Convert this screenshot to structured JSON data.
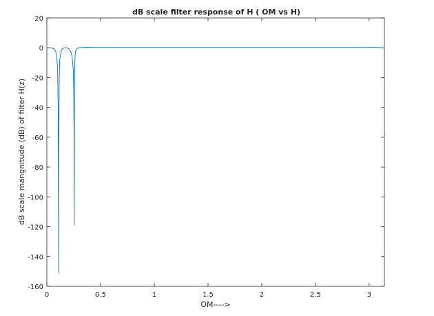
{
  "chart_data": {
    "type": "line",
    "title": "dB scale filter response of H ( OM vs H)",
    "xlabel": "OM---->",
    "ylabel": "dB scale mangnitude (dB) of filter H(z)",
    "xlim": [
      0,
      3.1416
    ],
    "ylim": [
      -160,
      20
    ],
    "xticks": [
      0,
      0.5,
      1,
      1.5,
      2,
      2.5,
      3
    ],
    "xtick_labels": [
      "0",
      "0.5",
      "1",
      "1.5",
      "2",
      "2.5",
      "3"
    ],
    "yticks": [
      20,
      0,
      -20,
      -40,
      -60,
      -80,
      -100,
      -120,
      -140,
      -160
    ],
    "ytick_labels": [
      "20",
      "0",
      "-20",
      "-40",
      "-60",
      "-80",
      "-100",
      "-120",
      "-140",
      "-160"
    ],
    "grid": false,
    "legend": "none",
    "series": [
      {
        "color": "#0072bd",
        "x": [
          0,
          0.04,
          0.07,
          0.085,
          0.095,
          0.1,
          0.105,
          0.108,
          0.11,
          0.112,
          0.115,
          0.12,
          0.13,
          0.14,
          0.16,
          0.18,
          0.2,
          0.22,
          0.235,
          0.245,
          0.25,
          0.253,
          0.255,
          0.257,
          0.26,
          0.265,
          0.275,
          0.29,
          0.31,
          0.35,
          0.45,
          0.6,
          1.0,
          1.5,
          2.0,
          2.5,
          3.0,
          3.1,
          3.1416
        ],
        "values": [
          0,
          0,
          -0.8,
          -3,
          -8,
          -15,
          -38,
          -80,
          -151,
          -60,
          -20,
          -8,
          -3,
          -1,
          0,
          0,
          -0.5,
          -2,
          -6,
          -14,
          -28,
          -60,
          -119,
          -30,
          -10,
          -3,
          -1,
          -0.2,
          0.2,
          0.3,
          0.4,
          0.4,
          0.4,
          0.4,
          0.4,
          0.4,
          0.4,
          0.2,
          -0.3
        ]
      }
    ]
  }
}
